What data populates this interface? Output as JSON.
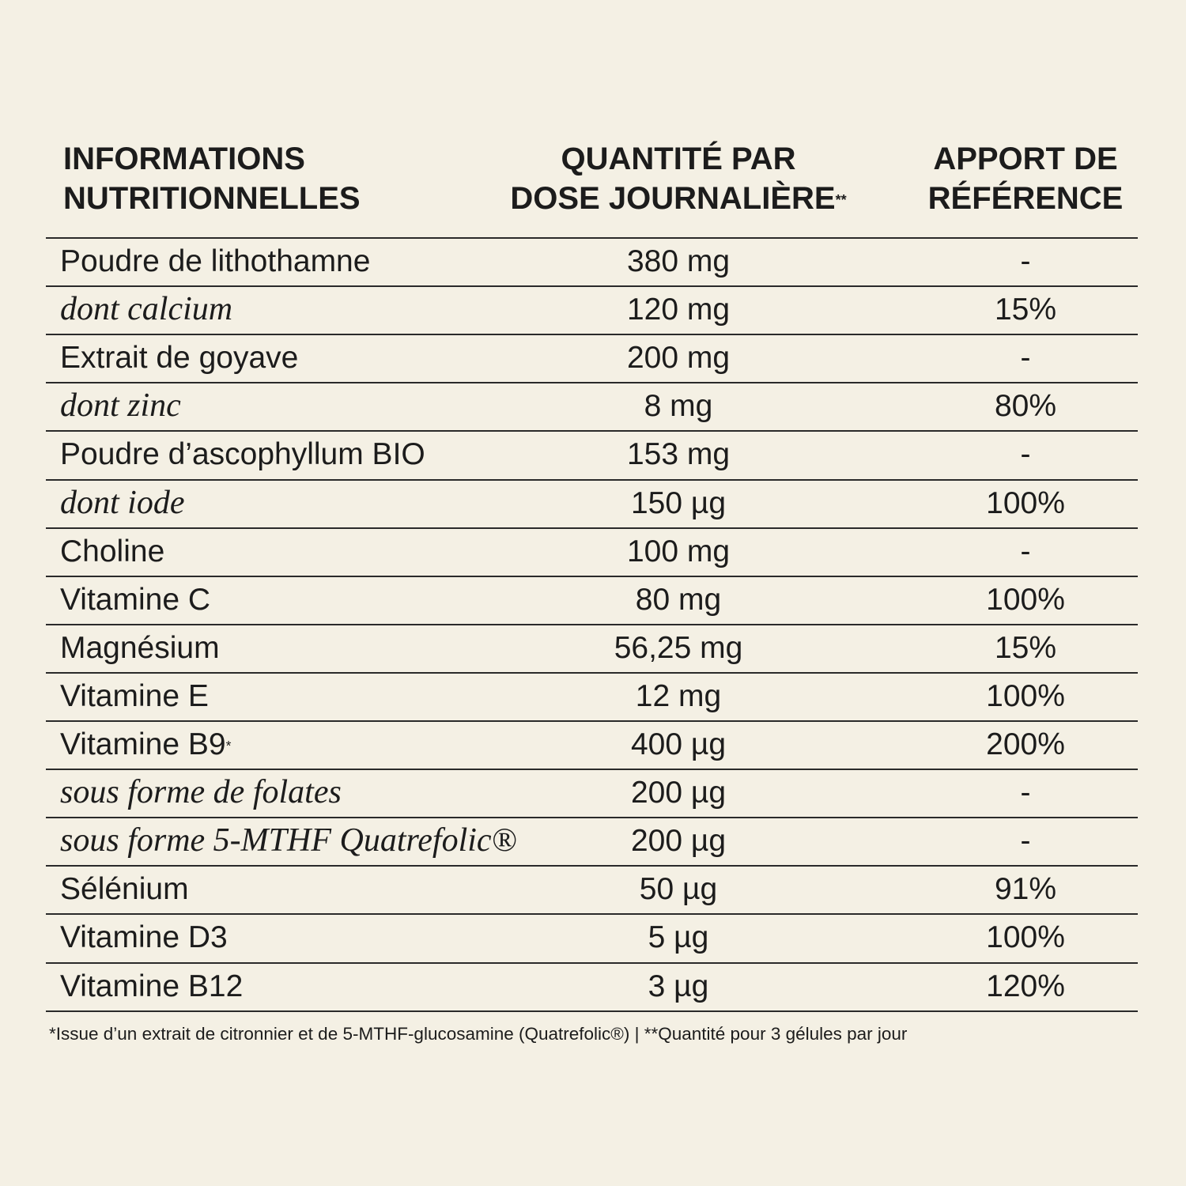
{
  "header": {
    "columns": [
      {
        "lines": [
          "INFORMATIONS",
          "NUTRITIONNELLES"
        ]
      },
      {
        "lines": [
          "QUANTITÉ PAR",
          "DOSE JOURNALIÈRE"
        ],
        "note": "**"
      },
      {
        "lines": [
          "APPORT DE",
          "RÉFÉRENCE"
        ]
      }
    ]
  },
  "table": {
    "rows": [
      {
        "name": "Poudre de lithothamne",
        "quantity": "380 mg",
        "reference": "-"
      },
      {
        "name": "dont calcium",
        "quantity": "120 mg",
        "reference": "15%",
        "italic": true
      },
      {
        "name": "Extrait de goyave",
        "quantity": "200 mg",
        "reference": "-"
      },
      {
        "name": "dont zinc",
        "quantity": "8 mg",
        "reference": "80%",
        "italic": true
      },
      {
        "name": "Poudre d’ascophyllum BIO",
        "quantity": "153 mg",
        "reference": "-"
      },
      {
        "name": "dont iode",
        "quantity": "150 µg",
        "reference": "100%",
        "italic": true
      },
      {
        "name": "Choline",
        "quantity": "100 mg",
        "reference": "-"
      },
      {
        "name": "Vitamine C",
        "quantity": "80 mg",
        "reference": "100%"
      },
      {
        "name": "Magnésium",
        "quantity": "56,25 mg",
        "reference": "15%"
      },
      {
        "name": "Vitamine E",
        "quantity": "12 mg",
        "reference": "100%"
      },
      {
        "name": "Vitamine B9",
        "note": "*",
        "quantity": "400 µg",
        "reference": "200%"
      },
      {
        "name": "sous forme de folates",
        "quantity": "200 µg",
        "reference": "-",
        "italic": true
      },
      {
        "name": "sous forme 5-MTHF Quatrefolic®",
        "quantity": "200 µg",
        "reference": "-",
        "italic": true
      },
      {
        "name": "Sélénium",
        "quantity": "50 µg",
        "reference": "91%"
      },
      {
        "name": "Vitamine D3",
        "quantity": "5 µg",
        "reference": "100%"
      },
      {
        "name": "Vitamine B12",
        "quantity": "3 µg",
        "reference": "120%"
      }
    ]
  },
  "footnote": "*Issue d’un extrait de citronnier et de 5-MTHF-glucosamine (Quatrefolic®) | **Quantité pour 3 gélules par jour"
}
